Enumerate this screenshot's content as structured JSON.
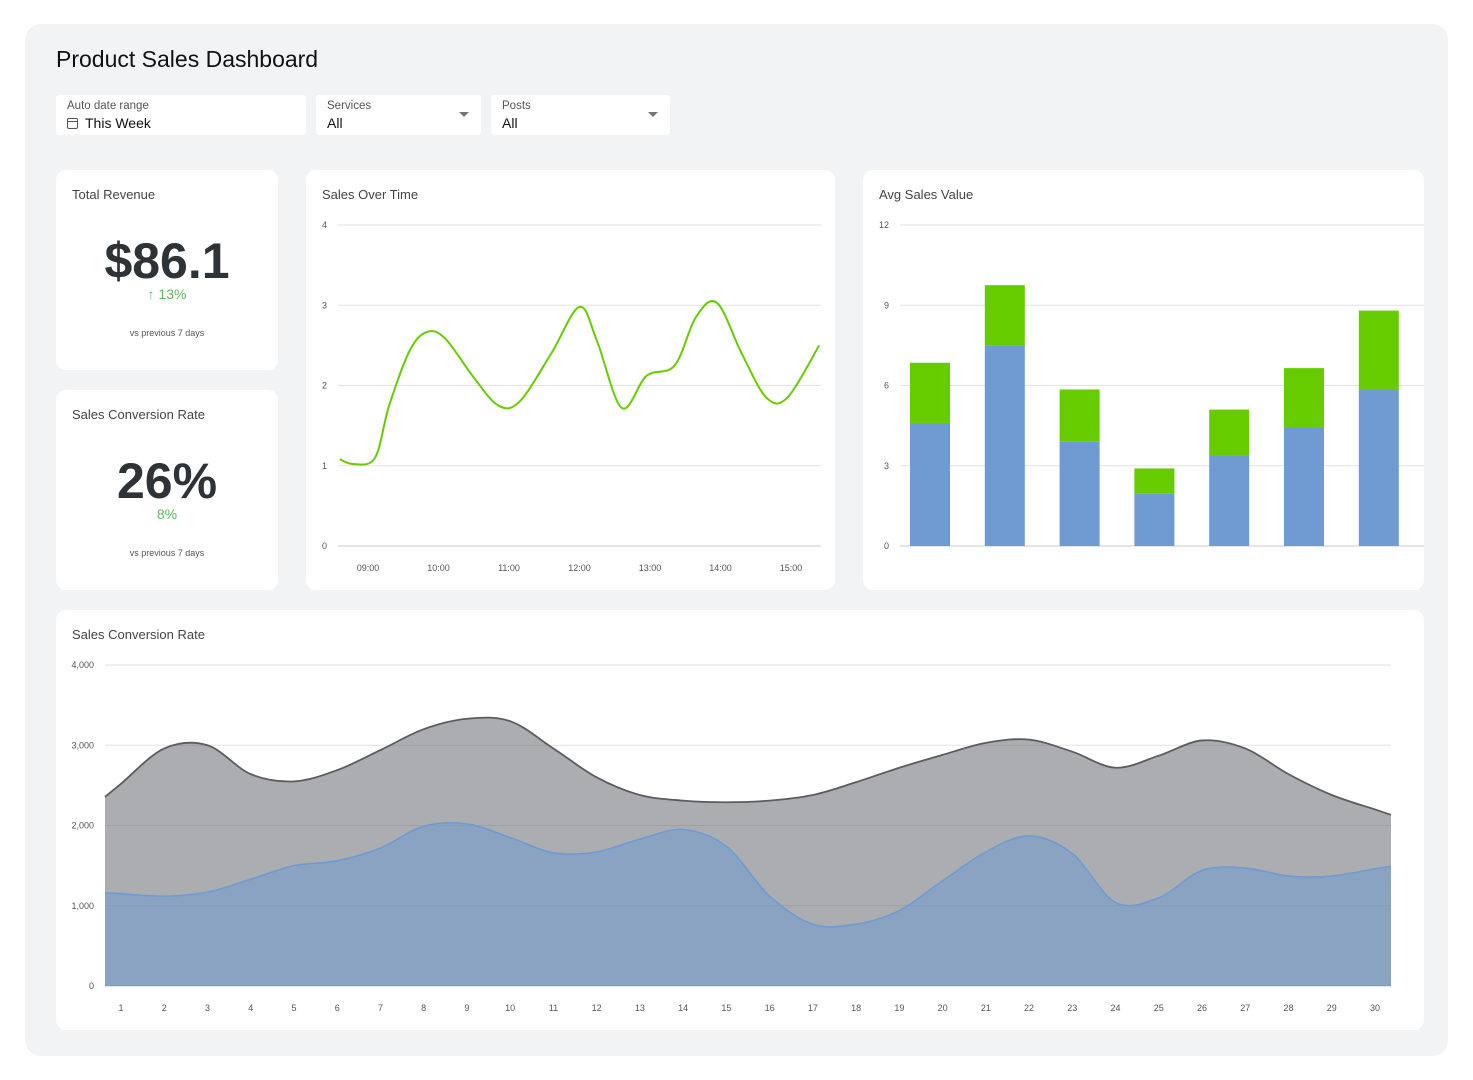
{
  "page": {
    "title": "Product Sales Dashboard"
  },
  "filters": [
    {
      "label": "Auto date range",
      "value": "This Week",
      "icon": "calendar-icon"
    },
    {
      "label": "Services",
      "value": "All",
      "icon": "chevron-down-icon"
    },
    {
      "label": "Posts",
      "value": "All",
      "icon": "chevron-down-icon"
    }
  ],
  "kpis": {
    "revenue": {
      "title": "Total Revenue",
      "value": "$86.1",
      "delta": "↑ 13%",
      "sub": "vs previous 7 days"
    },
    "conversion": {
      "title": "Sales Conversion Rate",
      "value": "26%",
      "delta": "8%",
      "sub": "vs previous 7 days"
    }
  },
  "colors": {
    "green": "#66cc00",
    "blue": "#6f9bd2",
    "darkgray": "#5a5c62",
    "deltaGreen": "#5cb85c"
  },
  "chart_data": [
    {
      "type": "line",
      "title": "Sales Over Time",
      "xlabel": "",
      "ylabel": "",
      "ylim": [
        0,
        4
      ],
      "yticks": [
        "0",
        "1",
        "2",
        "3",
        "4"
      ],
      "xticks": [
        "09:00",
        "10:00",
        "11:00",
        "12:00",
        "13:00",
        "14:00",
        "15:00"
      ],
      "grid": true,
      "series": [
        {
          "x": [
            8.6,
            8.8,
            9.1,
            9.3,
            9.6,
            9.85,
            10.1,
            10.5,
            10.85,
            11.15,
            11.6,
            12.0,
            12.25,
            12.6,
            12.95,
            13.35,
            13.65,
            13.95,
            14.3,
            14.65,
            14.95,
            15.4
          ],
          "y": [
            1.08,
            1.02,
            1.1,
            1.75,
            2.45,
            2.67,
            2.58,
            2.1,
            1.75,
            1.8,
            2.4,
            2.98,
            2.55,
            1.72,
            2.12,
            2.25,
            2.85,
            3.03,
            2.4,
            1.85,
            1.85,
            2.5
          ]
        }
      ]
    },
    {
      "type": "bar",
      "title": "Avg Sales Value",
      "stacked": true,
      "xlabel": "",
      "ylabel": "",
      "ylim": [
        0,
        12
      ],
      "yticks": [
        "0",
        "3",
        "6",
        "9",
        "12"
      ],
      "grid": true,
      "categories": [
        "",
        "",
        "",
        "",
        "",
        "",
        ""
      ],
      "series": [
        {
          "values": [
            4.6,
            7.5,
            3.9,
            1.95,
            3.4,
            4.45,
            5.85
          ],
          "color": "#6f9bd2"
        },
        {
          "values": [
            2.25,
            2.25,
            1.95,
            0.95,
            1.7,
            2.2,
            2.95
          ],
          "color": "#66cc00"
        }
      ]
    },
    {
      "type": "area",
      "title": "Sales Conversion Rate",
      "xlabel": "",
      "ylabel": "",
      "ylim": [
        0,
        4000
      ],
      "yticks": [
        "0",
        "1,000",
        "2,000",
        "3,000",
        "4,000"
      ],
      "grid": true,
      "x": [
        1,
        2,
        3,
        4,
        5,
        6,
        7,
        8,
        9,
        10,
        11,
        12,
        13,
        14,
        15,
        16,
        17,
        18,
        19,
        20,
        21,
        22,
        23,
        24,
        25,
        26,
        27,
        28,
        29,
        30
      ],
      "xticks": [
        "1",
        "2",
        "3",
        "4",
        "5",
        "6",
        "7",
        "8",
        "9",
        "10",
        "11",
        "12",
        "13",
        "14",
        "15",
        "16",
        "17",
        "18",
        "19",
        "20",
        "21",
        "22",
        "23",
        "24",
        "25",
        "26",
        "27",
        "28",
        "29",
        "30"
      ],
      "series": [
        {
          "values": [
            2520,
            2960,
            3000,
            2640,
            2550,
            2690,
            2940,
            3200,
            3330,
            3300,
            2960,
            2600,
            2380,
            2310,
            2290,
            2310,
            2380,
            2540,
            2720,
            2880,
            3030,
            3070,
            2920,
            2720,
            2870,
            3060,
            2960,
            2640,
            2380,
            2200
          ],
          "color": "#5a5c62"
        },
        {
          "values": [
            1150,
            1120,
            1170,
            1330,
            1500,
            1560,
            1720,
            1990,
            2020,
            1850,
            1660,
            1670,
            1830,
            1950,
            1740,
            1120,
            770,
            770,
            940,
            1310,
            1670,
            1870,
            1650,
            1040,
            1100,
            1440,
            1470,
            1370,
            1370,
            1460
          ],
          "color": "#6f9bd2"
        }
      ]
    }
  ]
}
